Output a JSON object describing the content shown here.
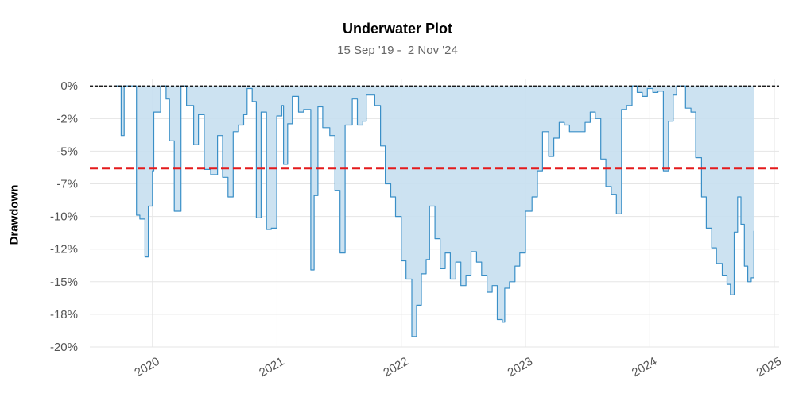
{
  "chart_data": {
    "type": "area",
    "title": "Underwater Plot",
    "subtitle": "15 Sep '19 -  2 Nov '24",
    "xlabel": "",
    "ylabel": "Drawdown",
    "ylim": [
      -20,
      0.5
    ],
    "xlim": [
      "2019-07-01",
      "2025-01-15"
    ],
    "grid": true,
    "y_ticks": [
      0,
      -2.5,
      -5,
      -7.5,
      -10,
      -12.5,
      -15,
      -17.5,
      -20
    ],
    "y_tick_labels": [
      "0%",
      "-2%",
      "-5%",
      "-7%",
      "-10%",
      "-12%",
      "-15%",
      "-18%",
      "-20%"
    ],
    "x_ticks": [
      "2020-01-01",
      "2021-01-01",
      "2022-01-01",
      "2023-01-01",
      "2024-01-01",
      "2025-01-01"
    ],
    "x_tick_labels": [
      "2020",
      "2021",
      "2022",
      "2023",
      "2024",
      "2025"
    ],
    "average_drawdown": -6.3,
    "zero_line": 0,
    "colors": {
      "line": "#3a8fc7",
      "fill": "#c6dff0",
      "average_line": "#e41a1c",
      "zero_line": "#000000",
      "grid": "#e5e5e5"
    },
    "series": [
      {
        "x": [
          "2019-09-15",
          "2019-10-01",
          "2019-10-10",
          "2019-11-01",
          "2019-11-15",
          "2019-11-25",
          "2019-12-10",
          "2019-12-20",
          "2020-01-01",
          "2020-01-05",
          "2020-01-25",
          "2020-02-10",
          "2020-02-20",
          "2020-03-05",
          "2020-03-25",
          "2020-04-10",
          "2020-05-01",
          "2020-05-15",
          "2020-06-01",
          "2020-06-20",
          "2020-07-10",
          "2020-07-25",
          "2020-08-10",
          "2020-08-25",
          "2020-09-10",
          "2020-09-25",
          "2020-10-05",
          "2020-10-20",
          "2020-11-01",
          "2020-11-15",
          "2020-12-01",
          "2020-12-15",
          "2020-12-31",
          "2021-01-15",
          "2021-01-20",
          "2021-02-01",
          "2021-02-15",
          "2021-03-05",
          "2021-03-20",
          "2021-04-10",
          "2021-04-20",
          "2021-05-01",
          "2021-05-15",
          "2021-06-05",
          "2021-06-20",
          "2021-07-05",
          "2021-07-20",
          "2021-08-10",
          "2021-08-25",
          "2021-09-10",
          "2021-09-20",
          "2021-10-01",
          "2021-10-15",
          "2021-11-01",
          "2021-11-15",
          "2021-12-01",
          "2021-12-15",
          "2022-01-01",
          "2022-01-15",
          "2022-02-01",
          "2022-02-15",
          "2022-03-01",
          "2022-03-15",
          "2022-03-25",
          "2022-04-10",
          "2022-04-25",
          "2022-05-10",
          "2022-05-25",
          "2022-06-10",
          "2022-06-25",
          "2022-07-10",
          "2022-07-25",
          "2022-08-10",
          "2022-08-25",
          "2022-09-10",
          "2022-09-25",
          "2022-10-10",
          "2022-10-25",
          "2022-11-01",
          "2022-11-15",
          "2022-12-01",
          "2022-12-15",
          "2023-01-01",
          "2023-01-20",
          "2023-02-05",
          "2023-02-20",
          "2023-03-10",
          "2023-03-25",
          "2023-04-10",
          "2023-04-25",
          "2023-05-10",
          "2023-05-25",
          "2023-06-10",
          "2023-06-25",
          "2023-07-10",
          "2023-07-25",
          "2023-08-10",
          "2023-08-25",
          "2023-09-10",
          "2023-09-25",
          "2023-10-10",
          "2023-10-25",
          "2023-11-10",
          "2023-11-25",
          "2023-12-10",
          "2023-12-25",
          "2024-01-10",
          "2024-01-25",
          "2024-02-10",
          "2024-02-25",
          "2024-03-10",
          "2024-03-20",
          "2024-04-01",
          "2024-04-15",
          "2024-05-01",
          "2024-05-15",
          "2024-06-01",
          "2024-06-15",
          "2024-07-01",
          "2024-07-15",
          "2024-08-01",
          "2024-08-15",
          "2024-08-25",
          "2024-09-05",
          "2024-09-15",
          "2024-09-25",
          "2024-10-05",
          "2024-10-15",
          "2024-10-25",
          "2024-11-02"
        ],
        "y": [
          0,
          -3.8,
          0,
          0,
          -9.9,
          -10.2,
          -13.1,
          -9.2,
          -6.5,
          -2,
          0,
          -1,
          -4.2,
          -9.6,
          0,
          -1.5,
          -4.5,
          -2.2,
          -6.4,
          -6.8,
          -3.8,
          -7.0,
          -8.5,
          -3.5,
          -3.0,
          -2.2,
          -0.2,
          -1.2,
          -10.1,
          -2.0,
          -11.0,
          -10.9,
          -2.3,
          -1.5,
          -6.0,
          -2.9,
          -0.8,
          -2.0,
          -1.8,
          -14.1,
          -8.4,
          -1.6,
          -3.2,
          -3.8,
          -8.0,
          -12.8,
          -3.0,
          -1.0,
          -3.0,
          -2.7,
          -0.7,
          -0.7,
          -1.5,
          -4.6,
          -7.5,
          -8.5,
          -10.0,
          -13.4,
          -14.8,
          -19.2,
          -16.8,
          -14.4,
          -13.3,
          -9.2,
          -11.7,
          -14.0,
          -12.8,
          -14.8,
          -13.5,
          -15.3,
          -14.5,
          -12.7,
          -13.5,
          -14.5,
          -15.8,
          -15.3,
          -17.9,
          -18.1,
          -15.5,
          -15.0,
          -13.8,
          -12.8,
          -9.6,
          -8.5,
          -6.5,
          -3.5,
          -5.4,
          -4.0,
          -2.8,
          -3.0,
          -3.5,
          -3.5,
          -3.5,
          -2.8,
          -2.0,
          -2.5,
          -5.6,
          -7.7,
          -8.3,
          -9.8,
          -1.8,
          -1.5,
          0,
          -0.5,
          -0.8,
          -0.2,
          -0.5,
          -0.4,
          -6.5,
          -2.7,
          -0.7,
          0,
          0,
          -1.7,
          -2.0,
          -5.5,
          -8.5,
          -10.9,
          -12.4,
          -13.6,
          -14.5,
          -15.2,
          -16.0,
          -11.2,
          -8.5,
          -10.6,
          -13.8,
          -15.0,
          -14.7,
          -11.1
        ]
      }
    ]
  }
}
